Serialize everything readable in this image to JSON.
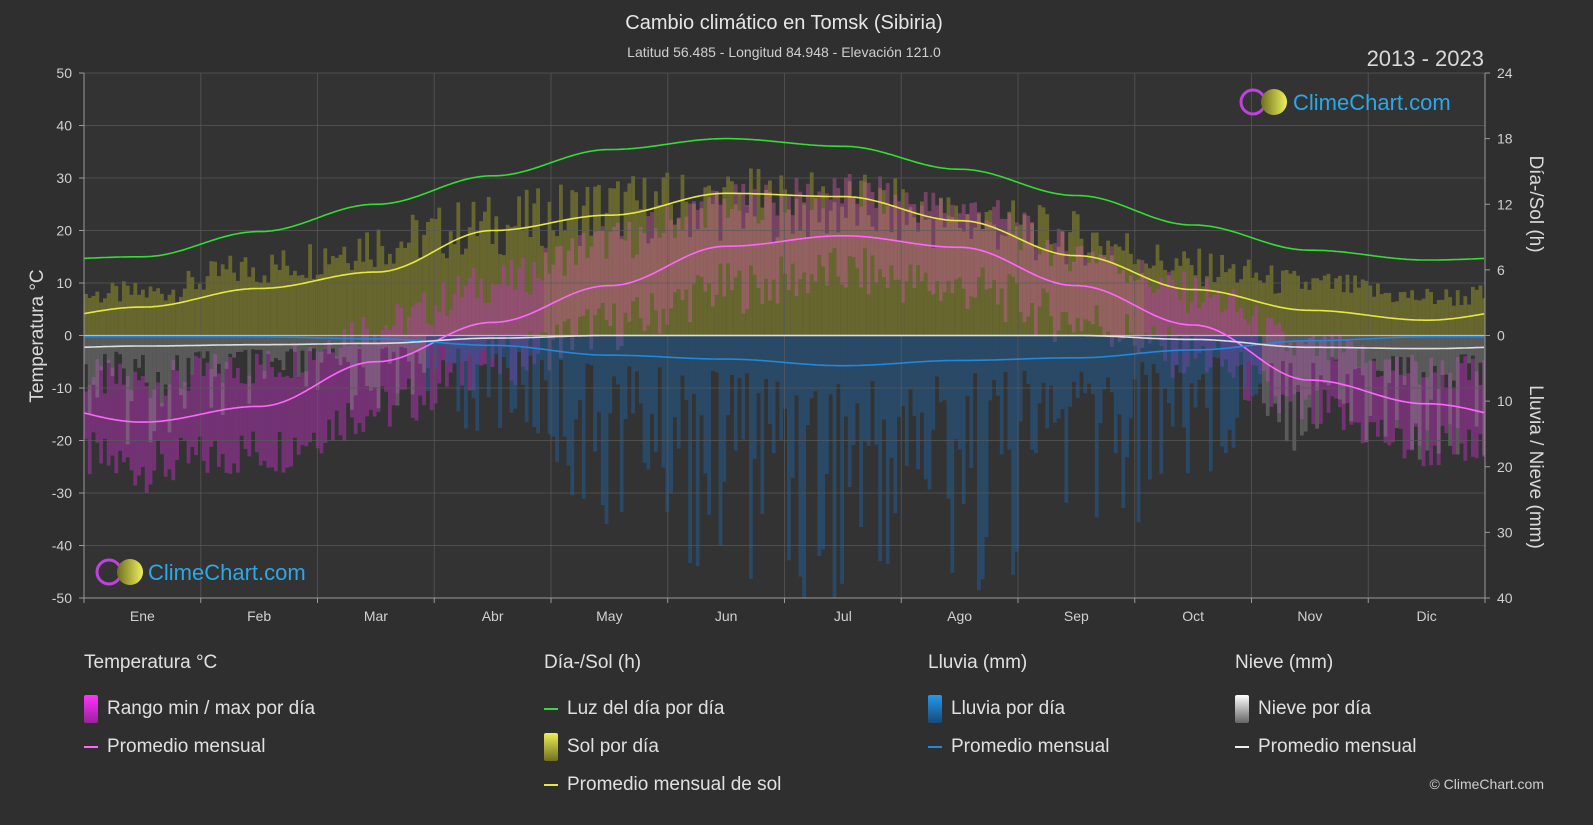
{
  "header": {
    "title": "Cambio climático en Tomsk (Sibiria)",
    "subtitle": "Latitud 56.485 - Longitud 84.948 - Elevación 121.0",
    "years": "2013 - 2023"
  },
  "brand": {
    "text": "ClimeChart.com"
  },
  "copyright": "© ClimeChart.com",
  "legend": {
    "temp": {
      "header": "Temperatura °C",
      "range": "Rango min / max por día",
      "avg": "Promedio mensual"
    },
    "sun": {
      "header": "Día-/Sol (h)",
      "daylight": "Luz del día por día",
      "sun": "Sol por día",
      "avg": "Promedio mensual de sol"
    },
    "rain": {
      "header": "Lluvia (mm)",
      "rain": "Lluvia por día",
      "avg": "Promedio mensual"
    },
    "snow": {
      "header": "Nieve (mm)",
      "snow": "Nieve por día",
      "avg": "Promedio mensual"
    }
  },
  "colors": {
    "daylight": "#33dd33",
    "sun_avg": "#e8e844",
    "temp_avg": "#ff66ff",
    "temp_range": "#cc33cc",
    "rain": "#2288dd",
    "snow": "#dddddd",
    "sunshine": "#8f8f2a"
  },
  "chart_data": {
    "type": "line",
    "categories": [
      "Ene",
      "Feb",
      "Mar",
      "Abr",
      "May",
      "Jun",
      "Jul",
      "Ago",
      "Sep",
      "Oct",
      "Nov",
      "Dic"
    ],
    "axes": {
      "left": {
        "label": "Temperatura °C",
        "range": [
          -50,
          50
        ],
        "ticks": [
          50,
          40,
          30,
          20,
          10,
          0,
          -10,
          -20,
          -30,
          -40,
          -50
        ]
      },
      "right_top": {
        "label": "Día-/Sol (h)",
        "range": [
          0,
          24
        ],
        "ticks": [
          24,
          18,
          12,
          6,
          0
        ]
      },
      "right_bottom": {
        "label": "Lluvia / Nieve (mm)",
        "range": [
          0,
          40
        ],
        "ticks": [
          10,
          20,
          30,
          40
        ]
      }
    },
    "series": [
      {
        "name": "Luz del día por día",
        "axis": "hours",
        "values": [
          7.2,
          9.5,
          12.0,
          14.6,
          17.0,
          18.0,
          17.3,
          15.2,
          12.8,
          10.1,
          7.8,
          6.9
        ]
      },
      {
        "name": "Promedio mensual de sol",
        "axis": "hours",
        "values": [
          2.6,
          4.3,
          5.8,
          9.6,
          11.0,
          13.0,
          12.7,
          10.5,
          7.3,
          4.2,
          2.3,
          1.4
        ]
      },
      {
        "name": "Promedio mensual",
        "axis": "temp",
        "values": [
          -16.5,
          -13.5,
          -5.0,
          2.5,
          9.5,
          17.0,
          19.0,
          16.8,
          9.5,
          2.0,
          -8.5,
          -13.0
        ]
      },
      {
        "name": "Lluvia promedio mensual",
        "axis": "precip",
        "values": [
          0.2,
          0.2,
          0.5,
          1.5,
          3.0,
          3.6,
          4.6,
          3.8,
          3.4,
          2.2,
          0.8,
          0.2
        ]
      },
      {
        "name": "Nieve promedio mensual",
        "axis": "precip",
        "values": [
          1.6,
          1.4,
          1.2,
          0.4,
          0.0,
          0.0,
          0.0,
          0.0,
          0.0,
          0.6,
          1.8,
          2.0
        ]
      }
    ],
    "daily_ranges": {
      "temp_max": [
        -9,
        -6,
        2,
        10,
        18,
        25,
        27,
        24,
        16,
        8,
        -3,
        -7
      ],
      "temp_min": [
        -25,
        -22,
        -14,
        -5,
        2,
        9,
        12,
        9,
        3,
        -4,
        -15,
        -21
      ],
      "sunshine_max_hours": [
        5,
        8,
        11,
        13,
        15,
        15.5,
        15,
        13.5,
        11.5,
        8,
        6,
        4.5
      ]
    },
    "grid": true
  }
}
